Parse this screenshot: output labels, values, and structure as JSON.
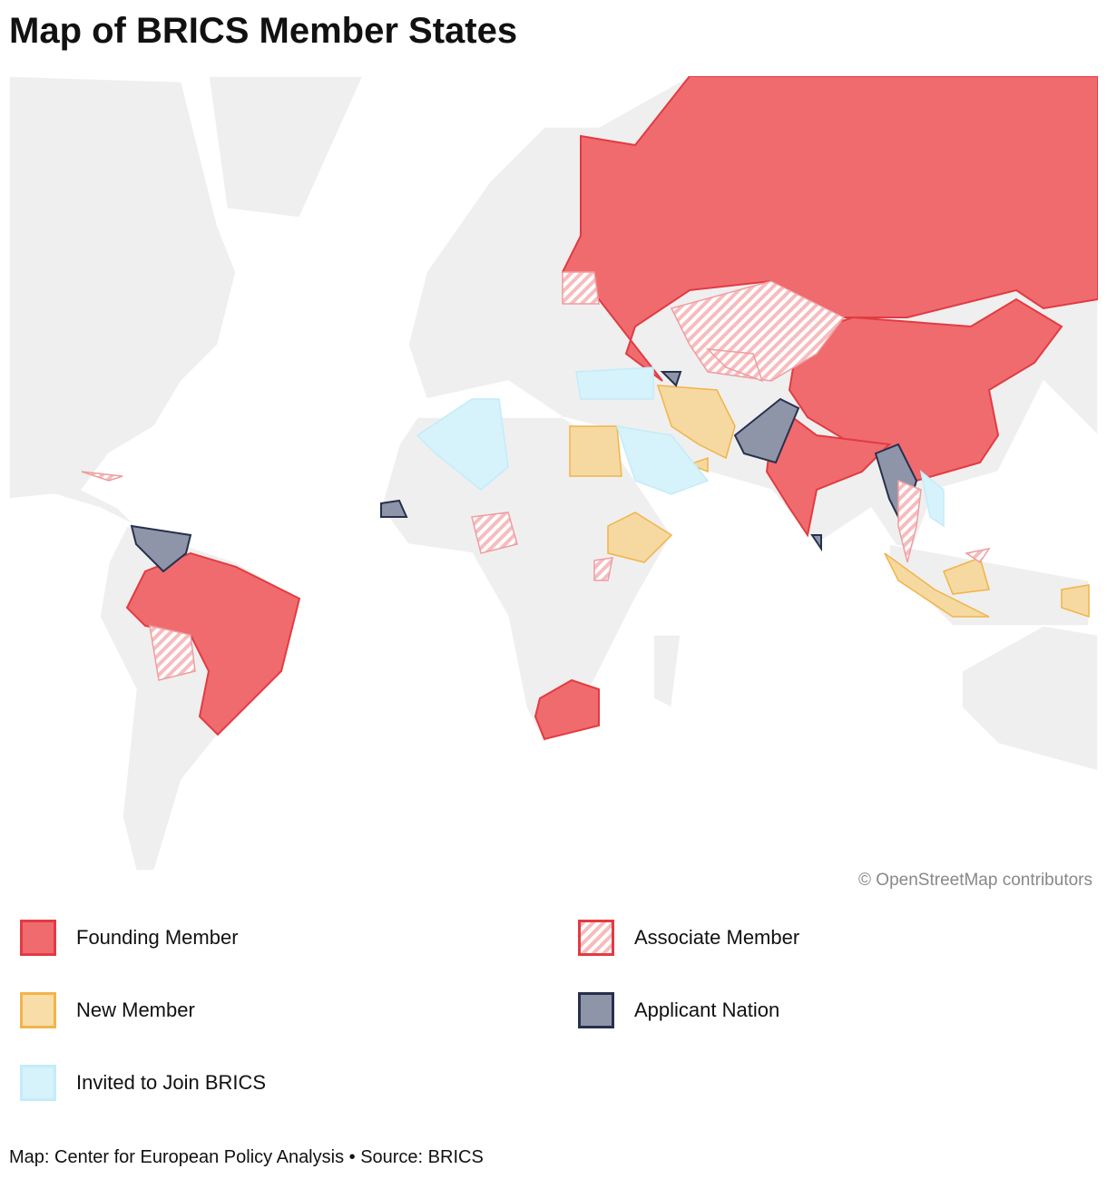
{
  "title": "Map of BRICS Member States",
  "map": {
    "attribution": "© OpenStreetMap contributors"
  },
  "legend": [
    {
      "label": "Founding Member"
    },
    {
      "label": "Associate Member"
    },
    {
      "label": "New Member"
    },
    {
      "label": "Applicant Nation"
    },
    {
      "label": "Invited to Join BRICS"
    }
  ],
  "footer": "Map: Center for European Policy Analysis • Source: BRICS"
}
